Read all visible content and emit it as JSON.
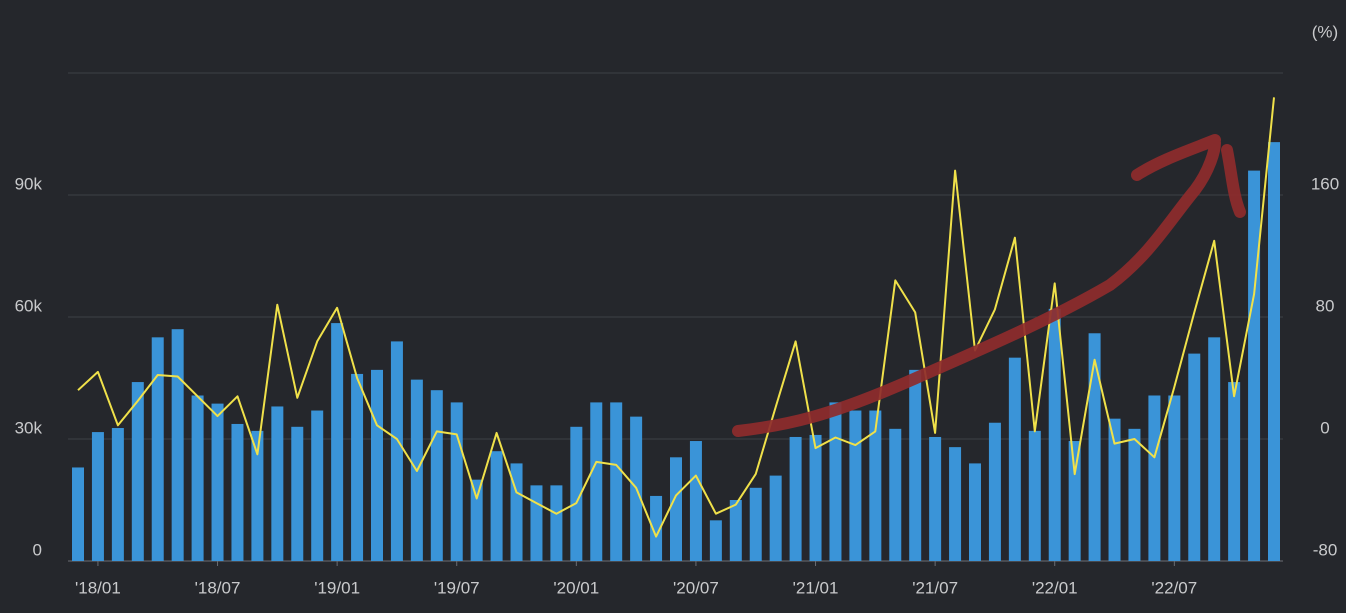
{
  "chart_data": {
    "type": "bar_line",
    "y2_label": "(%)",
    "categories": [
      null,
      "'18/01",
      null,
      null,
      null,
      null,
      null,
      "'18/07",
      null,
      null,
      null,
      null,
      null,
      "'19/01",
      null,
      null,
      null,
      null,
      null,
      "'19/07",
      null,
      null,
      null,
      null,
      null,
      "'20/01",
      null,
      null,
      null,
      null,
      null,
      "'20/07",
      null,
      null,
      null,
      null,
      null,
      "'21/01",
      null,
      null,
      null,
      null,
      null,
      "'21/07",
      null,
      null,
      null,
      null,
      null,
      "'22/01",
      null,
      null,
      null,
      null,
      null,
      "'22/07",
      null,
      null,
      null,
      null,
      null
    ],
    "series": [
      {
        "type": "bar",
        "color": "#3a94d8",
        "values": [
          23000,
          31700,
          32700,
          44000,
          55000,
          57000,
          40700,
          38700,
          33700,
          32000,
          38000,
          33000,
          37000,
          58500,
          46000,
          47000,
          54000,
          44600,
          42000,
          39000,
          20000,
          27000,
          24000,
          18600,
          18600,
          33000,
          39000,
          39000,
          35500,
          16000,
          25500,
          29500,
          10000,
          15000,
          18000,
          21000,
          30500,
          31000,
          39000,
          37000,
          37000,
          32500,
          47000,
          30500,
          28000,
          24000,
          34000,
          50000,
          32000,
          62000,
          29500,
          56000,
          35000,
          32500,
          40700,
          40700,
          51000,
          55000,
          44000,
          96000,
          103000
        ]
      },
      {
        "type": "line",
        "axis": "y2",
        "color": "#f0e14a",
        "values": [
          32,
          44,
          9,
          25,
          42,
          41,
          28,
          15,
          28,
          -10,
          88,
          27,
          64,
          86,
          40,
          9,
          0,
          -21,
          5,
          3,
          -39,
          4,
          -35,
          -42,
          -49,
          -42,
          -15,
          -17,
          -32,
          -64,
          -37,
          -24,
          -49,
          -43,
          -23,
          21,
          64,
          -6,
          1,
          -4,
          5,
          104,
          83,
          4,
          176,
          58,
          85,
          132,
          5,
          102,
          -23,
          52,
          -3,
          0,
          -12,
          34,
          83,
          130,
          28,
          95,
          224
        ]
      }
    ],
    "ylim": [
      0,
      120000
    ],
    "yticks": [
      0,
      {
        "value": 30000,
        "label": "30k"
      },
      {
        "value": 60000,
        "label": "60k"
      },
      {
        "value": 90000,
        "label": "90k"
      }
    ],
    "y2lim": [
      -80,
      240
    ],
    "y2ticks": [
      -80,
      0,
      80,
      160
    ],
    "grid": true
  }
}
